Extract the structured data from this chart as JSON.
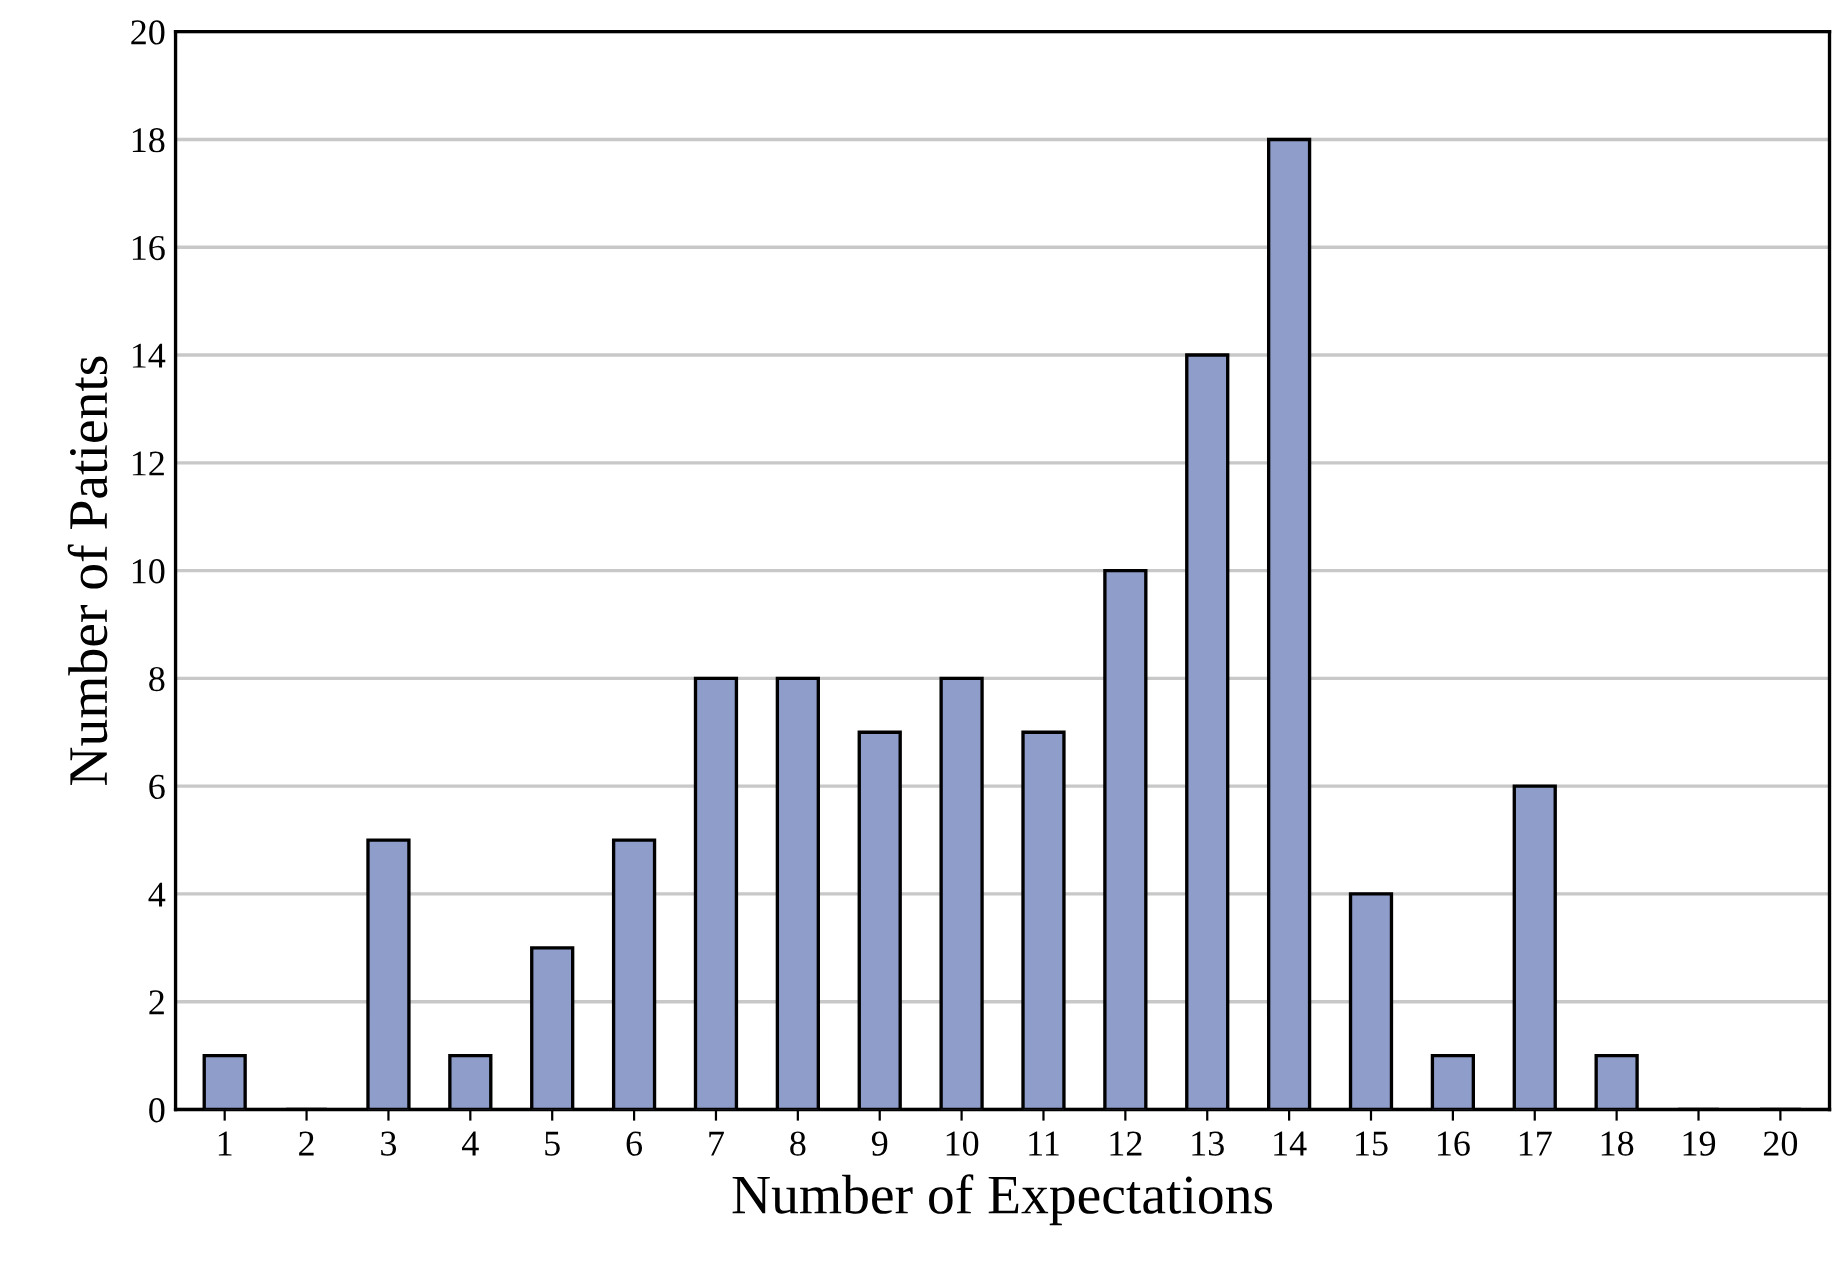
{
  "chart_data": {
    "type": "bar",
    "xlabel": "Number of Expectations",
    "ylabel": "Number of Patients",
    "categories": [
      "1",
      "2",
      "3",
      "4",
      "5",
      "6",
      "7",
      "8",
      "9",
      "10",
      "11",
      "12",
      "13",
      "14",
      "15",
      "16",
      "17",
      "18",
      "19",
      "20"
    ],
    "values": [
      1,
      0,
      5,
      1,
      3,
      5,
      8,
      8,
      7,
      8,
      7,
      10,
      14,
      18,
      4,
      1,
      6,
      1,
      0,
      0
    ],
    "color": "#8e9dc9",
    "ylim": [
      0,
      20
    ],
    "yticks": [
      0,
      2,
      4,
      6,
      8,
      10,
      12,
      14,
      16,
      18,
      20
    ],
    "grid": "y"
  }
}
